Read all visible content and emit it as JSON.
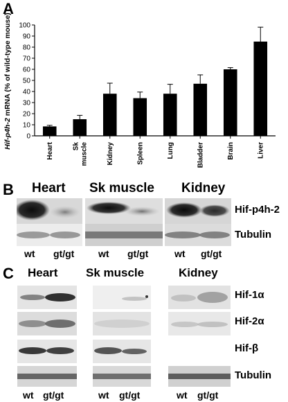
{
  "panels": {
    "a": {
      "letter": "A"
    },
    "b": {
      "letter": "B"
    },
    "c": {
      "letter": "C"
    }
  },
  "chart_data": {
    "type": "bar",
    "ylabel_italic": "Hif-p4h-2",
    "ylabel_rest": " mRNA (% of wild-type mouse)",
    "ylim": [
      0,
      100
    ],
    "yticks": [
      0,
      10,
      20,
      30,
      40,
      50,
      60,
      70,
      80,
      90,
      100
    ],
    "categories": [
      "Heart",
      "Sk muscle",
      "Kidney",
      "Spleen",
      "Lung",
      "Bladder",
      "Brain",
      "Liver"
    ],
    "category_lines": [
      [
        "Heart"
      ],
      [
        "Sk",
        "muscle"
      ],
      [
        "Kidney"
      ],
      [
        "Spleen"
      ],
      [
        "Lung"
      ],
      [
        "Bladder"
      ],
      [
        "Brain"
      ],
      [
        "Liver"
      ]
    ],
    "values": [
      8.5,
      15,
      38,
      34,
      38,
      47,
      60,
      85
    ],
    "errors": [
      1,
      3.5,
      9.5,
      5.5,
      8.5,
      8,
      1.5,
      13
    ],
    "bar_color": "#000000",
    "grid": false
  },
  "panel_b": {
    "tissues": [
      "Heart",
      "Sk muscle",
      "Kidney"
    ],
    "rows": [
      "Hif-p4h-2",
      "Tubulin"
    ],
    "lanes": [
      "wt",
      "gt/gt"
    ]
  },
  "panel_c": {
    "tissues": [
      "Heart",
      "Sk muscle",
      "Kidney"
    ],
    "rows": [
      "Hif-1α",
      "Hif-2α",
      "Hif-β",
      "Tubulin"
    ],
    "lanes": [
      "wt",
      "gt/gt"
    ]
  }
}
